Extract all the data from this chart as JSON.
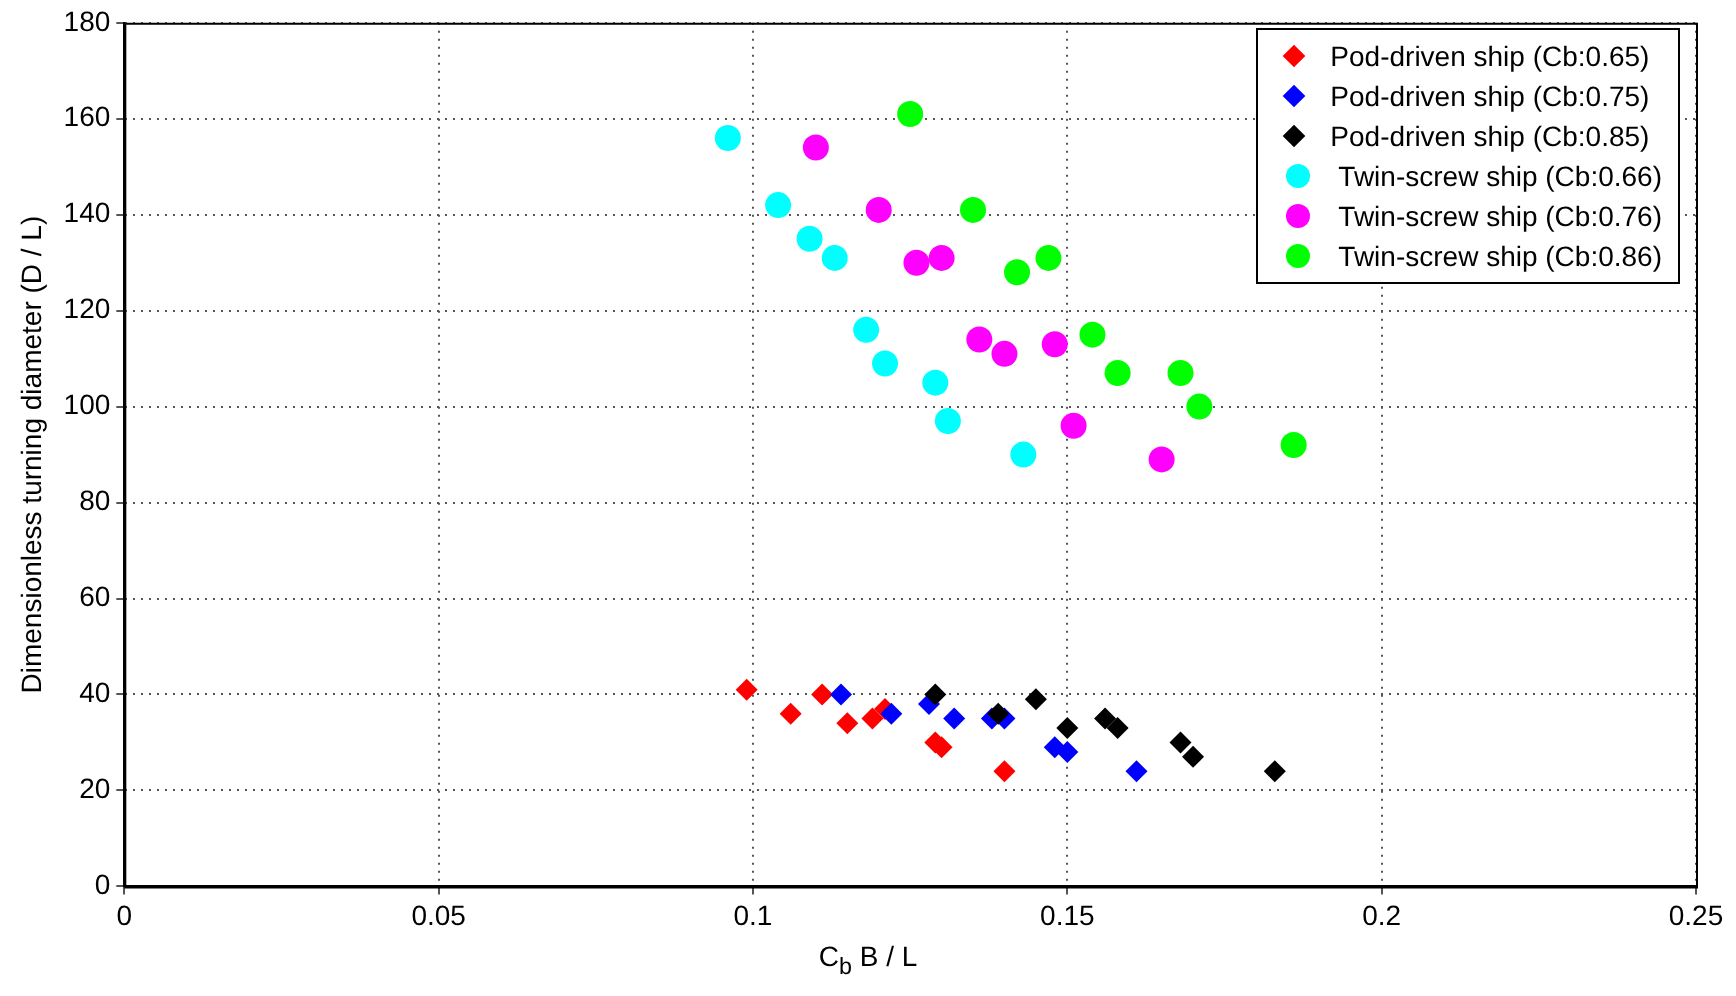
{
  "chart_data": {
    "type": "scatter",
    "xlabel": "C$_{b}$ B / L",
    "ylabel": "Dimensionless turning diameter (D / L)",
    "xlim": [
      0,
      0.25
    ],
    "xticks": [
      0,
      0.05,
      0.1,
      0.15,
      0.2,
      0.25
    ],
    "ylim": [
      0,
      180
    ],
    "yticks": [
      0,
      20,
      40,
      60,
      80,
      100,
      120,
      140,
      160,
      180
    ],
    "grid": true,
    "legend": "top right",
    "series": [
      {
        "name": "Pod-driven ship (Cb:0.65)",
        "color": "#ff0000",
        "marker": "diamond",
        "x": [
          0.099,
          0.106,
          0.111,
          0.115,
          0.119,
          0.121,
          0.129,
          0.13,
          0.14
        ],
        "values": [
          41,
          36,
          40,
          34,
          35,
          37,
          30,
          29,
          24
        ]
      },
      {
        "name": "Pod-driven ship (Cb:0.75)",
        "color": "#0000ff",
        "marker": "diamond",
        "x": [
          0.114,
          0.122,
          0.128,
          0.132,
          0.138,
          0.14,
          0.148,
          0.15,
          0.161
        ],
        "values": [
          40,
          36,
          38,
          35,
          35,
          35,
          29,
          28,
          24
        ]
      },
      {
        "name": "Pod-driven ship (Cb:0.85)",
        "color": "#000000",
        "marker": "diamond",
        "x": [
          0.129,
          0.139,
          0.145,
          0.15,
          0.156,
          0.158,
          0.168,
          0.17,
          0.183
        ],
        "values": [
          40,
          36,
          39,
          33,
          35,
          33,
          30,
          27,
          24
        ]
      },
      {
        "name": "Twin-screw ship (Cb:0.66)",
        "color": "#00ffff",
        "marker": "circle",
        "x": [
          0.096,
          0.104,
          0.109,
          0.113,
          0.118,
          0.121,
          0.129,
          0.131,
          0.143
        ],
        "values": [
          156,
          142,
          135,
          131,
          116,
          109,
          105,
          97,
          90
        ]
      },
      {
        "name": "Twin-screw ship (Cb:0.76)",
        "color": "#ff00ff",
        "marker": "circle",
        "x": [
          0.11,
          0.12,
          0.126,
          0.13,
          0.136,
          0.14,
          0.148,
          0.151,
          0.165
        ],
        "values": [
          154,
          141,
          130,
          131,
          114,
          111,
          113,
          96,
          89
        ]
      },
      {
        "name": "Twin-screw ship (Cb:0.86)",
        "color": "#00ff00",
        "marker": "circle",
        "x": [
          0.125,
          0.135,
          0.142,
          0.147,
          0.154,
          0.158,
          0.168,
          0.171,
          0.186
        ],
        "values": [
          161,
          141,
          128,
          131,
          115,
          107,
          107,
          100,
          92
        ]
      }
    ]
  }
}
